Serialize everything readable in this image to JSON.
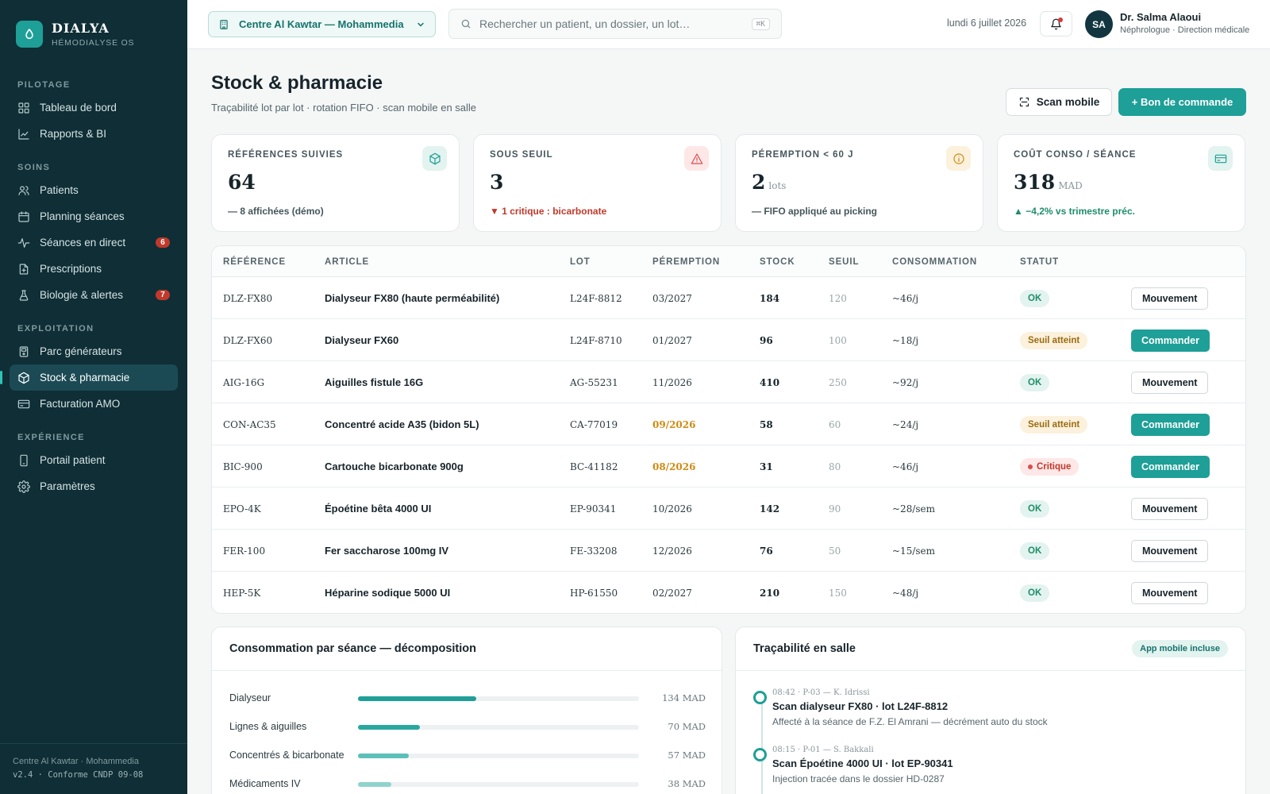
{
  "brand": {
    "name": "DIALYA",
    "subtitle": "HÉMODIALYSE OS"
  },
  "sidebar": {
    "sections": [
      {
        "title": "PILOTAGE",
        "items": [
          {
            "label": "Tableau de bord",
            "icon": "dashboard-icon"
          },
          {
            "label": "Rapports & BI",
            "icon": "chart-line-icon"
          }
        ]
      },
      {
        "title": "SOINS",
        "items": [
          {
            "label": "Patients",
            "icon": "users-icon"
          },
          {
            "label": "Planning séances",
            "icon": "calendar-icon"
          },
          {
            "label": "Séances en direct",
            "icon": "pulse-icon",
            "badge": "6"
          },
          {
            "label": "Prescriptions",
            "icon": "prescription-icon"
          },
          {
            "label": "Biologie & alertes",
            "icon": "flask-icon",
            "badge": "7"
          }
        ]
      },
      {
        "title": "EXPLOITATION",
        "items": [
          {
            "label": "Parc générateurs",
            "icon": "machine-icon"
          },
          {
            "label": "Stock & pharmacie",
            "icon": "box-icon",
            "active": true
          },
          {
            "label": "Facturation AMO",
            "icon": "card-icon"
          }
        ]
      },
      {
        "title": "EXPÉRIENCE",
        "items": [
          {
            "label": "Portail patient",
            "icon": "phone-icon"
          },
          {
            "label": "Paramètres",
            "icon": "gear-icon"
          }
        ]
      }
    ],
    "footer": {
      "line1": "Centre Al Kawtar · Mohammedia",
      "line2": "v2.4 · Conforme CNDP 09-08"
    }
  },
  "topbar": {
    "center": "Centre Al Kawtar — Mohammedia",
    "search_placeholder": "Rechercher un patient, un dossier, un lot…",
    "search_shortcut": "⌘K",
    "date": "lundi 6 juillet 2026",
    "user": {
      "initials": "SA",
      "name": "Dr. Salma Alaoui",
      "role": "Néphrologue · Direction médicale"
    }
  },
  "page": {
    "title": "Stock & pharmacie",
    "subtitle": "Traçabilité lot par lot · rotation FIFO · scan mobile en salle",
    "btn_scan": "Scan mobile",
    "btn_order": "+ Bon de commande"
  },
  "kpis": [
    {
      "label": "RÉFÉRENCES SUIVIES",
      "value": "64",
      "unit": "",
      "note": "— 8 affichées (démo)",
      "note_color": "#45565b",
      "icon": "box-icon",
      "icon_bg": "#e3f3ef",
      "icon_color": "#1e9f97"
    },
    {
      "label": "SOUS SEUIL",
      "value": "3",
      "unit": "",
      "note": "▼ 1 critique : bicarbonate",
      "note_color": "#c0392b",
      "icon": "warning-icon",
      "icon_bg": "#fde7e7",
      "icon_color": "#d64f4f"
    },
    {
      "label": "PÉREMPTION < 60 J",
      "value": "2",
      "unit": "lots",
      "note": "— FIFO appliqué au picking",
      "note_color": "#45565b",
      "icon": "info-icon",
      "icon_bg": "#fbf1dc",
      "icon_color": "#d08a12"
    },
    {
      "label": "COÛT CONSO / SÉANCE",
      "value": "318",
      "unit": "MAD",
      "note": "▲ −4,2% vs trimestre préc.",
      "note_color": "#1f8e67",
      "icon": "card-icon",
      "icon_bg": "#e3f3ef",
      "icon_color": "#1e9f97"
    }
  ],
  "table": {
    "headers": [
      "RÉFÉRENCE",
      "ARTICLE",
      "LOT",
      "PÉREMPTION",
      "STOCK",
      "SEUIL",
      "CONSOMMATION",
      "STATUT"
    ],
    "rows": [
      {
        "ref": "DLZ-FX80",
        "article": "Dialyseur FX80 (haute perméabilité)",
        "lot": "L24F-8812",
        "peremption": "03/2027",
        "per_warn": false,
        "stock": "184",
        "seuil": "120",
        "conso": "~46/j",
        "status": "OK",
        "status_type": "ok",
        "action": "Mouvement",
        "action_type": "mv"
      },
      {
        "ref": "DLZ-FX60",
        "article": "Dialyseur FX60",
        "lot": "L24F-8710",
        "peremption": "01/2027",
        "per_warn": false,
        "stock": "96",
        "seuil": "100",
        "conso": "~18/j",
        "status": "Seuil atteint",
        "status_type": "seuil",
        "action": "Commander",
        "action_type": "cmd"
      },
      {
        "ref": "AIG-16G",
        "article": "Aiguilles fistule 16G",
        "lot": "AG-55231",
        "peremption": "11/2026",
        "per_warn": false,
        "stock": "410",
        "seuil": "250",
        "conso": "~92/j",
        "status": "OK",
        "status_type": "ok",
        "action": "Mouvement",
        "action_type": "mv"
      },
      {
        "ref": "CON-AC35",
        "article": "Concentré acide A35 (bidon 5L)",
        "lot": "CA-77019",
        "peremption": "09/2026",
        "per_warn": true,
        "stock": "58",
        "seuil": "60",
        "conso": "~24/j",
        "status": "Seuil atteint",
        "status_type": "seuil",
        "action": "Commander",
        "action_type": "cmd"
      },
      {
        "ref": "BIC-900",
        "article": "Cartouche bicarbonate 900g",
        "lot": "BC-41182",
        "peremption": "08/2026",
        "per_warn": true,
        "stock": "31",
        "seuil": "80",
        "conso": "~46/j",
        "status": "Critique",
        "status_type": "crit",
        "action": "Commander",
        "action_type": "cmd"
      },
      {
        "ref": "EPO-4K",
        "article": "Époétine bêta 4000 UI",
        "lot": "EP-90341",
        "peremption": "10/2026",
        "per_warn": false,
        "stock": "142",
        "seuil": "90",
        "conso": "~28/sem",
        "status": "OK",
        "status_type": "ok",
        "action": "Mouvement",
        "action_type": "mv"
      },
      {
        "ref": "FER-100",
        "article": "Fer saccharose 100mg IV",
        "lot": "FE-33208",
        "peremption": "12/2026",
        "per_warn": false,
        "stock": "76",
        "seuil": "50",
        "conso": "~15/sem",
        "status": "OK",
        "status_type": "ok",
        "action": "Mouvement",
        "action_type": "mv"
      },
      {
        "ref": "HEP-5K",
        "article": "Héparine sodique 5000 UI",
        "lot": "HP-61550",
        "peremption": "02/2027",
        "per_warn": false,
        "stock": "210",
        "seuil": "150",
        "conso": "~48/j",
        "status": "OK",
        "status_type": "ok",
        "action": "Mouvement",
        "action_type": "mv"
      }
    ]
  },
  "consumption": {
    "title": "Consommation par séance — décomposition",
    "items": [
      {
        "label": "Dialyseur",
        "value": 134,
        "value_text": "134 MAD",
        "fraction": 0.42,
        "color": "#1e9f97"
      },
      {
        "label": "Lignes & aiguilles",
        "value": 70,
        "value_text": "70 MAD",
        "fraction": 0.22,
        "color": "#2aa8a0"
      },
      {
        "label": "Concentrés & bicarbonate",
        "value": 57,
        "value_text": "57 MAD",
        "fraction": 0.18,
        "color": "#5cc0b8"
      },
      {
        "label": "Médicaments IV",
        "value": 38,
        "value_text": "38 MAD",
        "fraction": 0.12,
        "color": "#8fd3cd"
      }
    ]
  },
  "traceability": {
    "title": "Traçabilité en salle",
    "tag": "App mobile incluse",
    "events": [
      {
        "meta": "08:42 · P-03 — K. Idrissi",
        "title": "Scan dialyseur FX80 · lot L24F-8812",
        "desc": "Affecté à la séance de F.Z. El Amrani — décrément auto du stock"
      },
      {
        "meta": "08:15 · P-01 — S. Bakkali",
        "title": "Scan Époétine 4000 UI · lot EP-90341",
        "desc": "Injection tracée dans le dossier HD-0287"
      }
    ]
  }
}
